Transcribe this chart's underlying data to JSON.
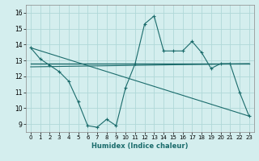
{
  "title": "",
  "xlabel": "Humidex (Indice chaleur)",
  "ylabel": "",
  "background_color": "#d4eeee",
  "grid_color": "#b0d8d8",
  "line_color": "#1a6b6b",
  "xlim": [
    -0.5,
    23.5
  ],
  "ylim": [
    8.5,
    16.5
  ],
  "xticks": [
    0,
    1,
    2,
    3,
    4,
    5,
    6,
    7,
    8,
    9,
    10,
    11,
    12,
    13,
    14,
    15,
    16,
    17,
    18,
    19,
    20,
    21,
    22,
    23
  ],
  "yticks": [
    9,
    10,
    11,
    12,
    13,
    14,
    15,
    16
  ],
  "curve1_x": [
    0,
    1,
    2,
    3,
    4,
    5,
    6,
    7,
    8,
    9,
    10,
    11,
    12,
    13,
    14,
    15,
    16,
    17,
    18,
    19,
    20,
    21,
    22,
    23
  ],
  "curve1_y": [
    13.8,
    13.1,
    12.7,
    12.3,
    11.7,
    10.4,
    8.9,
    8.8,
    9.3,
    8.9,
    11.3,
    12.8,
    15.3,
    15.8,
    13.6,
    13.6,
    13.6,
    14.2,
    13.5,
    12.5,
    12.8,
    12.8,
    11.0,
    9.5
  ],
  "curve2_x": [
    0,
    23
  ],
  "curve2_y": [
    12.8,
    12.8
  ],
  "curve3_x": [
    0,
    23
  ],
  "curve3_y": [
    12.6,
    12.8
  ],
  "curve4_x": [
    0,
    23
  ],
  "curve4_y": [
    13.8,
    9.5
  ]
}
